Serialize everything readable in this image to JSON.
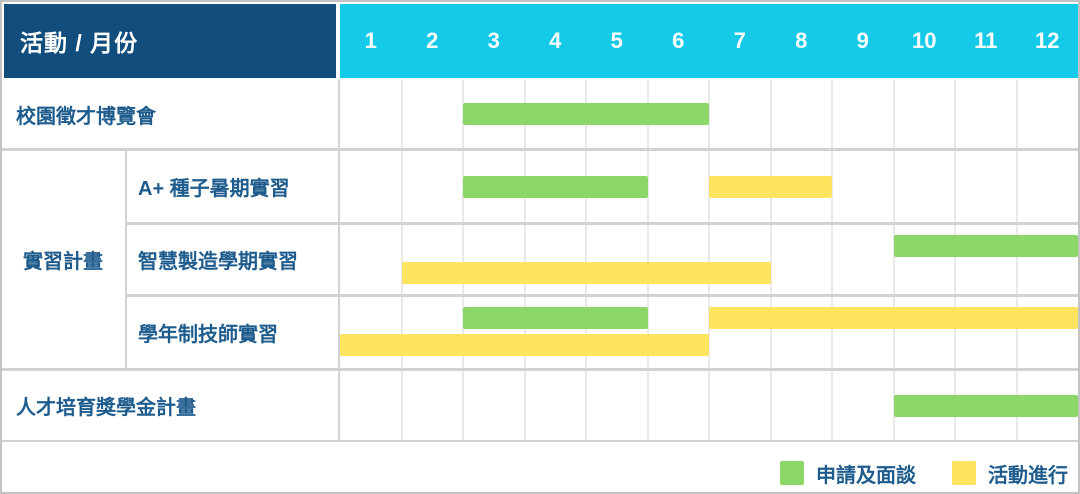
{
  "header": {
    "title": "活動 / 月份",
    "months": [
      "1",
      "2",
      "3",
      "4",
      "5",
      "6",
      "7",
      "8",
      "9",
      "10",
      "11",
      "12"
    ]
  },
  "groups": {
    "internship": "實習計畫"
  },
  "legend": [
    {
      "label": "申請及面談",
      "color": "#8CD768"
    },
    {
      "label": "活動進行",
      "color": "#FFE460"
    }
  ],
  "colors": {
    "header_navy": "#124E7D",
    "header_cyan": "#15C9E9",
    "label_text": "#1E5C8D",
    "apply_green": "#8CD768",
    "ongoing_yellow": "#FFE460",
    "grid_line": "#e9e9e9",
    "separator": "#d2d2d2"
  },
  "chart_data": {
    "type": "bar",
    "subtype": "gantt",
    "orientation": "horizontal",
    "title": "活動 / 月份",
    "x": {
      "label": "月份",
      "ticks": [
        1,
        2,
        3,
        4,
        5,
        6,
        7,
        8,
        9,
        10,
        11,
        12
      ],
      "range": [
        1,
        12
      ]
    },
    "grid": true,
    "legend_position": "bottom-right",
    "series_names": [
      "申請及面談",
      "活動進行"
    ],
    "tasks": [
      {
        "label": "校園徵才博覽會",
        "group": "",
        "lanes": 1,
        "bars": [
          {
            "series": "申請及面談",
            "start_month": 3,
            "end_month": 6,
            "lane": 0
          }
        ]
      },
      {
        "label": "A+ 種子暑期實習",
        "group": "實習計畫",
        "lanes": 1,
        "bars": [
          {
            "series": "申請及面談",
            "start_month": 3,
            "end_month": 5,
            "lane": 0
          },
          {
            "series": "活動進行",
            "start_month": 7,
            "end_month": 8,
            "lane": 0
          }
        ]
      },
      {
        "label": "智慧製造學期實習",
        "group": "實習計畫",
        "lanes": 2,
        "bars": [
          {
            "series": "申請及面談",
            "start_month": 10,
            "end_month": 12,
            "lane": 0
          },
          {
            "series": "活動進行",
            "start_month": 2,
            "end_month": 7,
            "lane": 1
          }
        ]
      },
      {
        "label": "學年制技師實習",
        "group": "實習計畫",
        "lanes": 2,
        "bars": [
          {
            "series": "申請及面談",
            "start_month": 3,
            "end_month": 5,
            "lane": 0
          },
          {
            "series": "活動進行",
            "start_month": 7,
            "end_month": 12,
            "lane": 0
          },
          {
            "series": "活動進行",
            "start_month": 1,
            "end_month": 6,
            "lane": 1
          }
        ]
      },
      {
        "label": "人才培育獎學金計畫",
        "group": "",
        "lanes": 1,
        "bars": [
          {
            "series": "申請及面談",
            "start_month": 10,
            "end_month": 12,
            "lane": 0
          }
        ]
      }
    ]
  }
}
